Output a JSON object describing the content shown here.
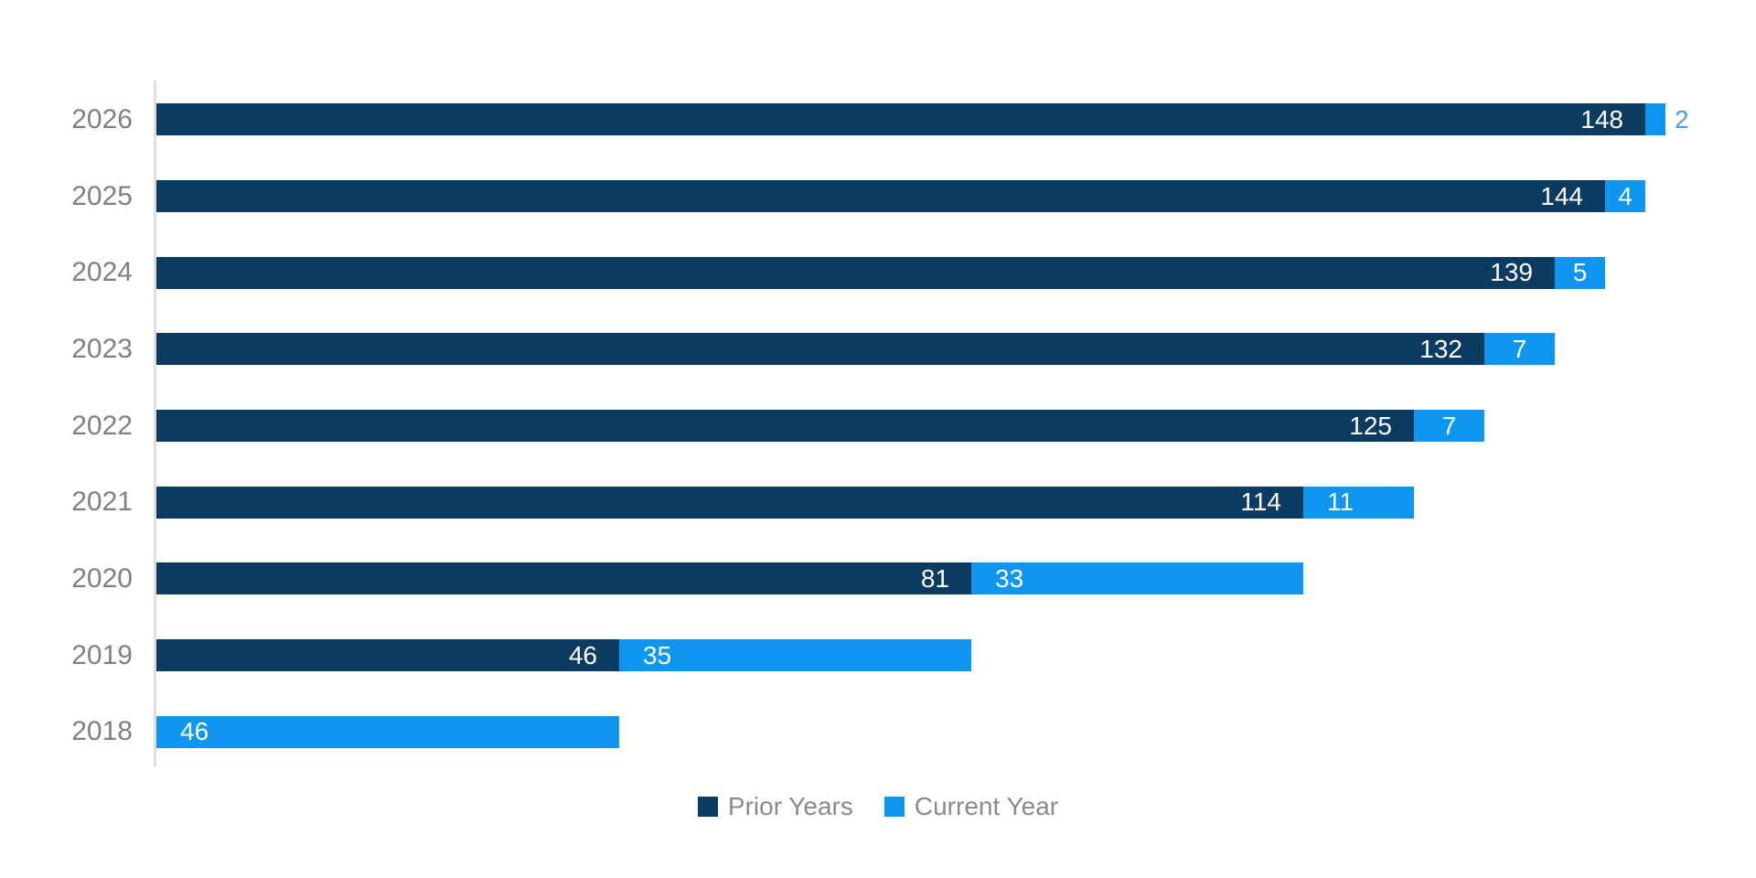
{
  "chart_data": {
    "type": "bar",
    "orientation": "horizontal",
    "stacked": true,
    "title": "",
    "xlabel": "",
    "ylabel": "",
    "categories": [
      "2026",
      "2025",
      "2024",
      "2023",
      "2022",
      "2021",
      "2020",
      "2019",
      "2018"
    ],
    "series": [
      {
        "name": "Prior Years",
        "color": "#0C3B61",
        "values": [
          148,
          144,
          139,
          132,
          125,
          114,
          81,
          46,
          null
        ]
      },
      {
        "name": "Current Year",
        "color": "#0E96F0",
        "values": [
          2,
          4,
          5,
          7,
          7,
          11,
          33,
          35,
          46
        ]
      }
    ],
    "xlim": [
      0,
      150
    ],
    "grid": false,
    "value_labels": true,
    "legend_position": "bottom-center",
    "colors": {
      "inside_label": "#FFFFFF",
      "outside_label": "#45A1EA",
      "category_label": "#808080",
      "legend_text": "#8A8A8A",
      "axis_line": "#DEDEDE"
    }
  }
}
